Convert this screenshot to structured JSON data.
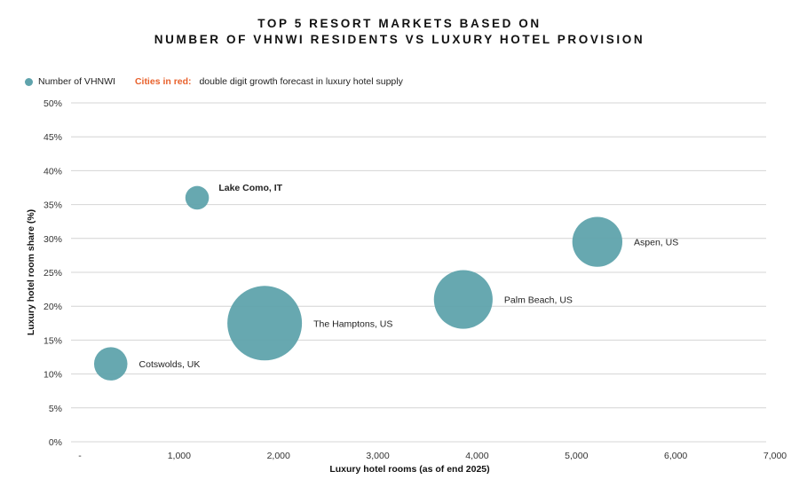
{
  "title_line1": "TOP 5 RESORT MARKETS BASED ON",
  "title_line2": "NUMBER OF VHNWI RESIDENTS VS LUXURY HOTEL PROVISION",
  "legend": {
    "series_label": "Number of VHNWI",
    "note_highlight": "Cities in red:",
    "note_text": "double digit growth forecast in luxury hotel supply"
  },
  "colors": {
    "bubble": "#5fa3ac",
    "highlight": "#e8612c",
    "grid": "#d4d4d4"
  },
  "chart_data": {
    "type": "scatter",
    "bubble": true,
    "xlabel": "Luxury hotel rooms (as of end 2025)",
    "ylabel": "Luxury hotel room share (%)",
    "xlim": [
      0,
      7000
    ],
    "ylim": [
      0,
      50
    ],
    "x_ticks": [
      0,
      1000,
      2000,
      3000,
      4000,
      5000,
      6000,
      7000
    ],
    "x_tick_labels": [
      "-",
      "1,000",
      "2,000",
      "3,000",
      "4,000",
      "5,000",
      "6,000",
      "7,000"
    ],
    "y_ticks": [
      0,
      5,
      10,
      15,
      20,
      25,
      30,
      35,
      40,
      45,
      50
    ],
    "y_tick_labels": [
      "0%",
      "5%",
      "10%",
      "15%",
      "20%",
      "25%",
      "30%",
      "35%",
      "40%",
      "45%",
      "50%"
    ],
    "grid": true,
    "legend_position": "top-left",
    "points": [
      {
        "label": "Cotswolds, UK",
        "x": 400,
        "y": 11.5,
        "size_rel": 0.2,
        "highlight": false
      },
      {
        "label": "Lake Como, IT",
        "x": 1270,
        "y": 36,
        "size_rel": 0.1,
        "highlight": true
      },
      {
        "label": "The Hamptons, US",
        "x": 1950,
        "y": 17.5,
        "size_rel": 1.0,
        "highlight": false
      },
      {
        "label": "Palm Beach, US",
        "x": 3950,
        "y": 21,
        "size_rel": 0.62,
        "highlight": false
      },
      {
        "label": "Aspen, US",
        "x": 5300,
        "y": 29.5,
        "size_rel": 0.45,
        "highlight": false
      }
    ]
  }
}
